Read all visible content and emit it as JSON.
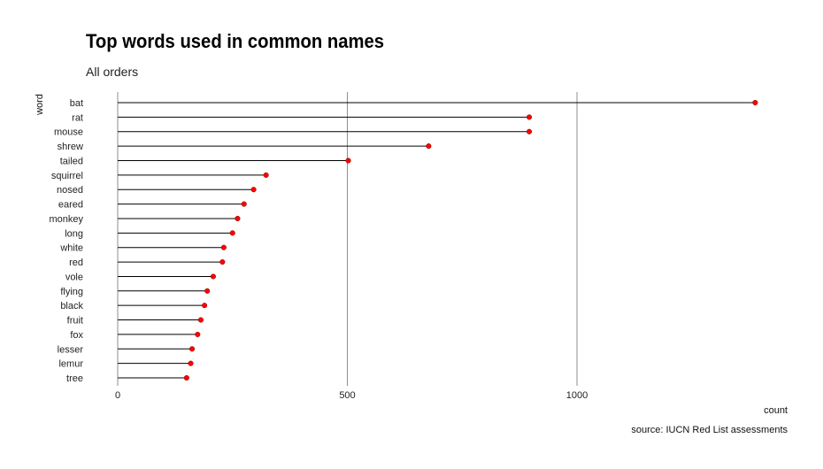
{
  "chart_data": {
    "type": "lollipop",
    "title": "Top words used in common names",
    "subtitle": "All orders",
    "caption": "source: IUCN Red List assessments",
    "xlabel": "count",
    "ylabel": "word",
    "xlim": [
      0,
      1450
    ],
    "xticks": [
      0,
      500,
      1000
    ],
    "grid": "vertical major",
    "point_color": "#ff0000",
    "categories": [
      "bat",
      "rat",
      "mouse",
      "shrew",
      "tailed",
      "squirrel",
      "nosed",
      "eared",
      "monkey",
      "long",
      "white",
      "red",
      "vole",
      "flying",
      "black",
      "fruit",
      "fox",
      "lesser",
      "lemur",
      "tree"
    ],
    "values": [
      1388,
      896,
      896,
      677,
      502,
      323,
      296,
      275,
      261,
      250,
      231,
      228,
      208,
      195,
      189,
      181,
      174,
      162,
      159,
      150
    ]
  }
}
